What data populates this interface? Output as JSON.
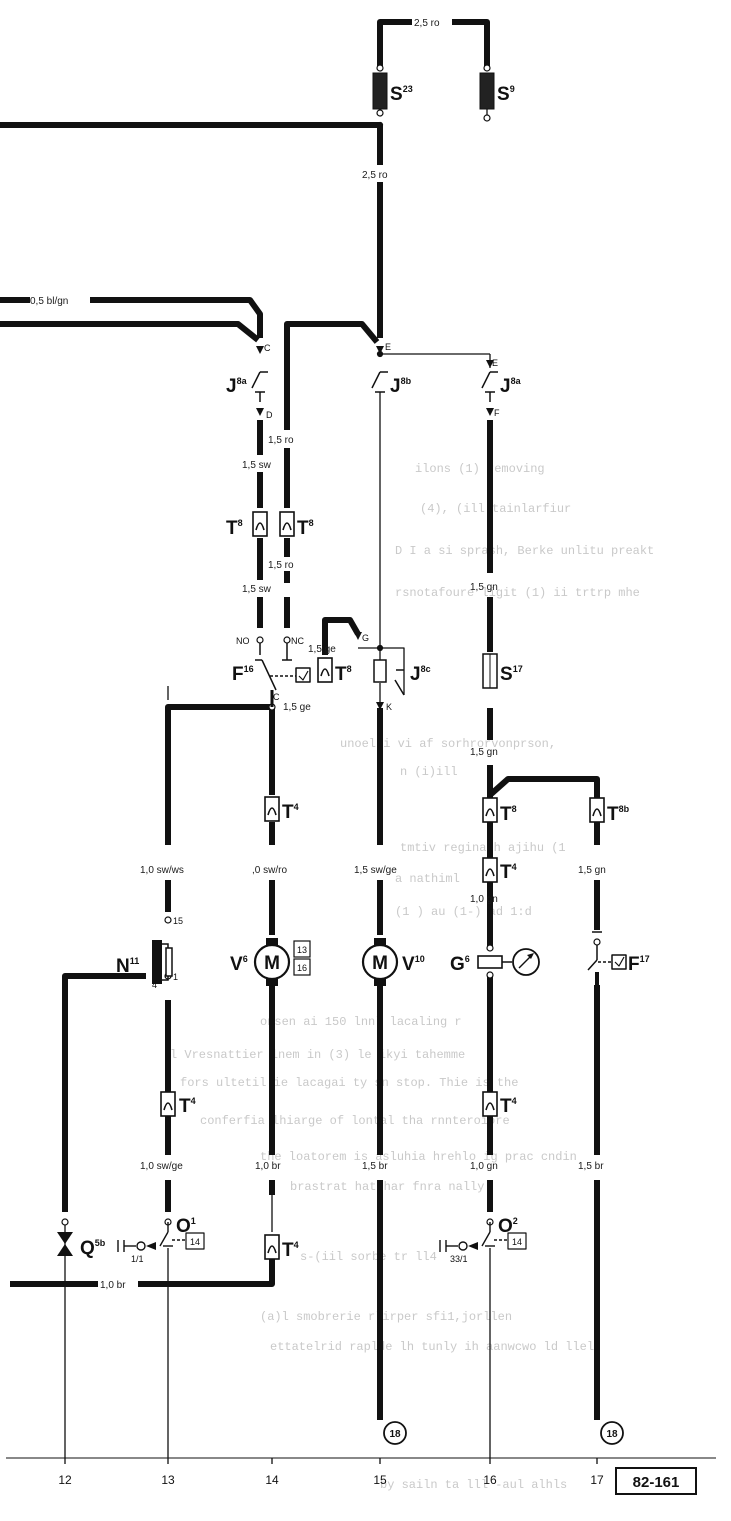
{
  "wire_labels": {
    "top_2_5_ro": "2,5 ro",
    "main_2_5_ro": "2,5 ro",
    "bl_gn": "0,5 bl/gn",
    "c13_1_5_sw_a": "1,5 sw",
    "c13_1_5_sw_b": "1,5 sw",
    "c14_1_5_ro_a": "1,5 ro",
    "c14_1_5_ro_b": "1,5 ro",
    "ge_a": "1,5 ge",
    "ge_b": "1,5 ge",
    "c16_1_5_gn_a": "1,5 gn",
    "c16_1_5_gn_b": "1,5 gn",
    "sw_ws": "1,0 sw/ws",
    "sw_ro": ",0 sw/ro",
    "sw_ge_15": "1,5 sw/ge",
    "c17_1_5_gn": "1,5 gn",
    "c16_1_0_gn_a": "1,0 gn",
    "sw_ge_13": "1,0 sw/ge",
    "c14_1_0_br": "1,0 br",
    "c15_1_5_br": "1,5 br",
    "c16_1_0_gn_b": "1,0 gn",
    "c17_1_5_br": "1,5 br",
    "bottom_1_0_br": "1,0 br"
  },
  "components": {
    "s23": {
      "code": "S",
      "sup": "23"
    },
    "s9": {
      "code": "S",
      "sup": "9"
    },
    "j8a_left": {
      "code": "J",
      "sup": "8a"
    },
    "j8b": {
      "code": "J",
      "sup": "8b"
    },
    "j8a_right": {
      "code": "J",
      "sup": "8a"
    },
    "t8_a": {
      "code": "T",
      "sup": "8"
    },
    "t8_b": {
      "code": "T",
      "sup": "8"
    },
    "t8_c": {
      "code": "T",
      "sup": "8"
    },
    "t8_d": {
      "code": "T",
      "sup": "8"
    },
    "t8b": {
      "code": "T",
      "sup": "8b"
    },
    "f16": {
      "code": "F",
      "sup": "16"
    },
    "j8c": {
      "code": "J",
      "sup": "8c"
    },
    "s17": {
      "code": "S",
      "sup": "17"
    },
    "t4_14a": {
      "code": "T",
      "sup": "4"
    },
    "t4_16a": {
      "code": "T",
      "sup": "4"
    },
    "t4_13": {
      "code": "T",
      "sup": "4"
    },
    "t4_16b": {
      "code": "T",
      "sup": "4"
    },
    "t4_14b": {
      "code": "T",
      "sup": "4"
    },
    "n11": {
      "code": "N",
      "sup": "11"
    },
    "v6": {
      "code": "V",
      "sup": "6"
    },
    "v10": {
      "code": "V",
      "sup": "10"
    },
    "g6": {
      "code": "G",
      "sup": "6"
    },
    "f17": {
      "code": "F",
      "sup": "17"
    },
    "q5b": {
      "code": "Q",
      "sup": "5b"
    },
    "o1": {
      "code": "O",
      "sup": "1"
    },
    "o2": {
      "code": "O",
      "sup": "2"
    }
  },
  "terminals": {
    "c": "C",
    "d": "D",
    "e1": "E",
    "e2": "E",
    "f": "F",
    "no": "NO",
    "nc": "NC",
    "g": "G",
    "c2": "C",
    "k": "K",
    "n15": "15",
    "n1": "1",
    "n4": "4",
    "motor": "M",
    "motor2": "M",
    "v6_13": "13",
    "v6_16": "16",
    "o1_ref": "14",
    "o1_sub": "1/1",
    "o2_ref": "14",
    "o2_sub": "33/1",
    "ref18a": "18",
    "ref18b": "18"
  },
  "columns": [
    "12",
    "13",
    "14",
    "15",
    "16",
    "17"
  ],
  "page_number": "82-161",
  "background_text": [
    "ilons (1) removing",
    "(4), (ill tainlarfiur",
    "D I a si sprash, Berke unlitu preakt",
    "rsnotafoure ligit (1) ii trtrp mhe",
    "unoelli vi af sorhrorvonprson,",
    "n (i)ill",
    "tmtiv reginath ajihu (1",
    "a nathiml",
    "(1 ) au (1-) ad 1:d",
    "onsen ai 150 lnnl lacaling r",
    "l Vresnattier lnem in (3) le ikyi tahemme",
    "fors ultetil ie lacagai ty sn stop. Thie is the",
    "conferfia lhiarge of lontal tha rnnteroiore",
    "the loatorem is asluhia hrehlo ig prac cndin",
    "brastrat hatshar fnra nally",
    "s-(iil sorbe tr ll4",
    "(a)l smobrerie rlirper sfi1,jorllen",
    "ettatelrid raplde lh tunly ih aanwcwo ld llel",
    "by sailn ta lll -aul alhls"
  ]
}
